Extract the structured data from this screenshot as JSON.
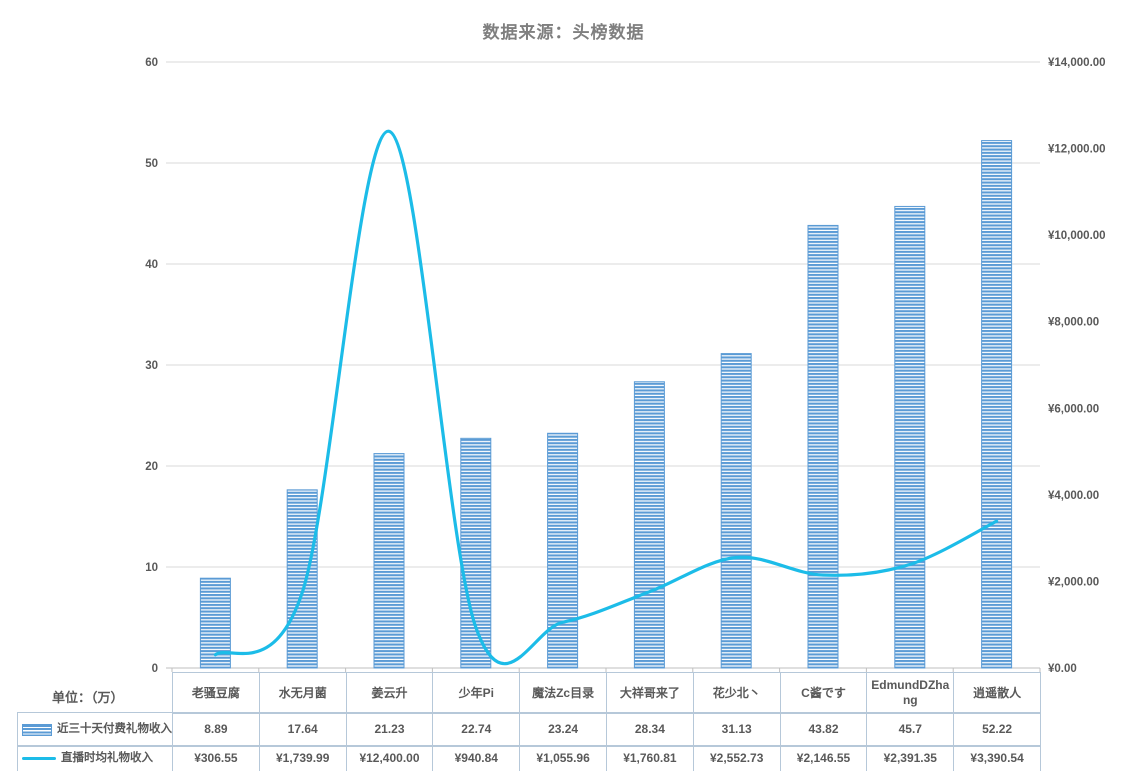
{
  "title": "数据来源：头榜数据",
  "unit_label": "单位：（万）",
  "colors": {
    "bar_fill": "#5b9bd5",
    "line": "#1cbce8",
    "grid": "#d9d9d9",
    "axis_line": "#bfbfbf",
    "axis_text": "#595959",
    "title_text": "#7f7f7f",
    "table_border": "#b6c8d9",
    "table_text": "#595959"
  },
  "chart_data": {
    "type": "combo-bar-line",
    "title": "数据来源：头榜数据",
    "categories": [
      "老骚豆腐",
      "水无月菌",
      "姜云升",
      "少年Pi",
      "魔法Zc目录",
      "大祥哥来了",
      "花少北丶",
      "C酱です",
      "EdmundDZhang",
      "逍遥散人"
    ],
    "series": [
      {
        "name": "近三十天付费礼物收入",
        "type": "bar",
        "axis": "left",
        "values": [
          8.89,
          17.64,
          21.23,
          22.74,
          23.24,
          28.34,
          31.13,
          43.82,
          45.7,
          52.22
        ],
        "labels": [
          "8.89",
          "17.64",
          "21.23",
          "22.74",
          "23.24",
          "28.34",
          "31.13",
          "43.82",
          "45.7",
          "52.22"
        ]
      },
      {
        "name": "直播时均礼物收入",
        "type": "line",
        "axis": "right",
        "values": [
          306.55,
          1739.99,
          12400.0,
          940.84,
          1055.96,
          1760.81,
          2552.73,
          2146.55,
          2391.35,
          3390.54
        ],
        "labels": [
          "¥306.55",
          "¥1,739.99",
          "¥12,400.00",
          "¥940.84",
          "¥1,055.96",
          "¥1,760.81",
          "¥2,552.73",
          "¥2,146.55",
          "¥2,391.35",
          "¥3,390.54"
        ]
      }
    ],
    "left_axis": {
      "min": 0,
      "max": 60,
      "tick_step": 10,
      "ticks": [
        "60",
        "50",
        "40",
        "30",
        "20",
        "10",
        "0"
      ]
    },
    "right_axis": {
      "min": 0,
      "max": 14000,
      "tick_step": 2000,
      "ticks": [
        "¥14,000.00",
        "¥12,000.00",
        "¥10,000.00",
        "¥8,000.00",
        "¥6,000.00",
        "¥4,000.00",
        "¥2,000.00",
        "¥0.00"
      ]
    },
    "grid": true,
    "legend_position": "table-left",
    "unit_note": "单位：（万）"
  }
}
